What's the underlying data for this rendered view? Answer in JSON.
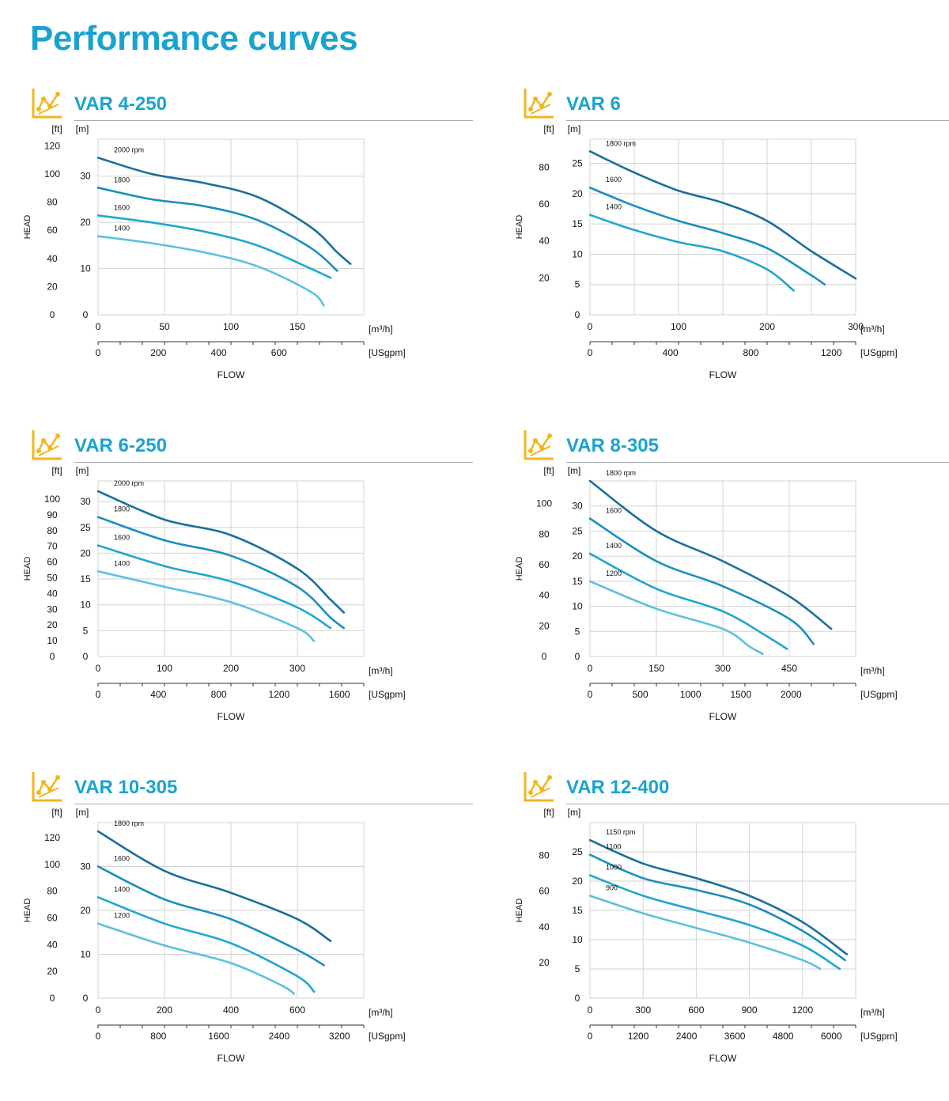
{
  "page": {
    "title": "Performance curves"
  },
  "colors": {
    "accent": "#1aa3cf",
    "icon": "#f3b51c",
    "grid": "#d3d3d3",
    "series": [
      "#1b6f9c",
      "#1a8fbd",
      "#1fa7cf",
      "#5bc1dd"
    ]
  },
  "panels": [
    {
      "title": "VAR 4-250",
      "chart_data": {
        "type": "line",
        "ft_label": "[ft]",
        "m_label": "[m]",
        "ylabel": "HEAD",
        "xlabel": "FLOW",
        "x_unit": "[m³/h]",
        "x2_unit": "[USgpm]",
        "xlim": [
          0,
          200
        ],
        "ylim": [
          0,
          38
        ],
        "x_ticks": [
          0,
          50,
          100,
          150
        ],
        "x_grid": [
          0,
          50,
          100,
          150,
          200
        ],
        "x2_ticks": [
          "0",
          "200",
          "400",
          "600"
        ],
        "x2_tick_positions": [
          0,
          45.4,
          90.8,
          136.2
        ],
        "m_ticks": [
          0,
          10,
          20,
          30
        ],
        "m_grid": [
          0,
          10,
          20,
          30
        ],
        "ft_ticks": [
          0,
          20,
          40,
          60,
          80,
          100,
          120
        ],
        "series": [
          {
            "name": "2000 rpm",
            "x": [
              0,
              40,
              80,
              120,
              160,
              180,
              190
            ],
            "y": [
              34,
              30.5,
              28.5,
              25.5,
              19,
              13.5,
              11
            ]
          },
          {
            "name": "1800",
            "x": [
              0,
              40,
              80,
              120,
              160,
              180
            ],
            "y": [
              27.5,
              25,
              23.5,
              20.5,
              14.5,
              9.5
            ]
          },
          {
            "name": "1600",
            "x": [
              0,
              40,
              80,
              120,
              160,
              175
            ],
            "y": [
              21.5,
              20,
              18,
              15,
              10,
              8
            ]
          },
          {
            "name": "1400",
            "x": [
              0,
              40,
              80,
              120,
              160,
              170
            ],
            "y": [
              17,
              15.5,
              13.5,
              10.5,
              5,
              2
            ]
          }
        ]
      }
    },
    {
      "title": "VAR 6",
      "chart_data": {
        "type": "line",
        "ft_label": "[ft]",
        "m_label": "[m]",
        "ylabel": "HEAD",
        "xlabel": "FLOW",
        "x_unit": "[m³/h]",
        "x2_unit": "[USgpm]",
        "xlim": [
          0,
          300
        ],
        "ylim": [
          0,
          29
        ],
        "x_ticks": [
          0,
          100,
          200,
          300
        ],
        "x_grid": [
          0,
          50,
          100,
          150,
          200,
          250,
          300
        ],
        "x2_ticks": [
          "0",
          "400",
          "800",
          "1200"
        ],
        "x2_tick_positions": [
          0,
          90.8,
          181.7,
          272.5
        ],
        "m_ticks": [
          0,
          5,
          10,
          15,
          20,
          25
        ],
        "m_grid": [
          0,
          5,
          10,
          15,
          20,
          25
        ],
        "ft_ticks": [
          20,
          40,
          60,
          80
        ],
        "series": [
          {
            "name": "1800 rpm",
            "x": [
              0,
              50,
              100,
              150,
              200,
              250,
              300
            ],
            "y": [
              27,
              23.5,
              20.5,
              18.5,
              15.5,
              10.5,
              6
            ]
          },
          {
            "name": "1600",
            "x": [
              0,
              50,
              100,
              150,
              200,
              250,
              265
            ],
            "y": [
              21,
              18,
              15.5,
              13.5,
              11,
              6.5,
              5
            ]
          },
          {
            "name": "1400",
            "x": [
              0,
              50,
              100,
              150,
              200,
              230
            ],
            "y": [
              16.5,
              14,
              12,
              10.5,
              7.5,
              4
            ]
          }
        ]
      }
    },
    {
      "title": "VAR 6-250",
      "chart_data": {
        "type": "line",
        "ft_label": "[ft]",
        "m_label": "[m]",
        "ylabel": "HEAD",
        "xlabel": "FLOW",
        "x_unit": "[m³/h]",
        "x2_unit": "[USgpm]",
        "xlim": [
          0,
          400
        ],
        "ylim": [
          0,
          34
        ],
        "x_ticks": [
          0,
          100,
          200,
          300
        ],
        "x_grid": [
          0,
          100,
          200,
          300,
          400
        ],
        "x2_ticks": [
          "0",
          "400",
          "800",
          "1200",
          "1600"
        ],
        "x2_tick_positions": [
          0,
          90.8,
          181.7,
          272.5,
          363.4
        ],
        "m_ticks": [
          0,
          5,
          10,
          15,
          20,
          25,
          30
        ],
        "m_grid": [
          0,
          5,
          10,
          15,
          20,
          25,
          30
        ],
        "ft_ticks": [
          0,
          10,
          20,
          30,
          40,
          50,
          60,
          70,
          80,
          90,
          100
        ],
        "series": [
          {
            "name": "2000 rpm",
            "x": [
              0,
              100,
              200,
              300,
              350,
              370
            ],
            "y": [
              32,
              26.5,
              23.5,
              17,
              11,
              8.5
            ]
          },
          {
            "name": "1800",
            "x": [
              0,
              100,
              200,
              300,
              350,
              370
            ],
            "y": [
              27,
              22.5,
              19.5,
              13.5,
              7.5,
              5.5
            ]
          },
          {
            "name": "1600",
            "x": [
              0,
              100,
              200,
              300,
              350
            ],
            "y": [
              21.5,
              17.5,
              14.5,
              9.5,
              5.5
            ]
          },
          {
            "name": "1400",
            "x": [
              0,
              100,
              200,
              300,
              325
            ],
            "y": [
              16.5,
              13.5,
              10.5,
              5.5,
              3
            ]
          }
        ]
      }
    },
    {
      "title": "VAR 8-305",
      "chart_data": {
        "type": "line",
        "ft_label": "[ft]",
        "m_label": "[m]",
        "ylabel": "HEAD",
        "xlabel": "FLOW",
        "x_unit": "[m³/h]",
        "x2_unit": "[USgpm]",
        "xlim": [
          0,
          600
        ],
        "ylim": [
          0,
          35
        ],
        "x_ticks": [
          0,
          150,
          300,
          450
        ],
        "x_grid": [
          0,
          150,
          300,
          450,
          600
        ],
        "x2_ticks": [
          "0",
          "500",
          "1000",
          "1500",
          "2000"
        ],
        "x2_tick_positions": [
          0,
          113.6,
          227.1,
          340.7,
          454.2
        ],
        "m_ticks": [
          0,
          5,
          10,
          15,
          20,
          25,
          30
        ],
        "m_grid": [
          0,
          5,
          10,
          15,
          20,
          25,
          30
        ],
        "ft_ticks": [
          0,
          20,
          40,
          60,
          80,
          100
        ],
        "series": [
          {
            "name": "1800 rpm",
            "x": [
              0,
              150,
              300,
              450,
              545
            ],
            "y": [
              35,
              25,
              19,
              12,
              5.5
            ]
          },
          {
            "name": "1600",
            "x": [
              0,
              150,
              300,
              450,
              505
            ],
            "y": [
              27.5,
              19,
              14,
              7.5,
              2.5
            ]
          },
          {
            "name": "1400",
            "x": [
              0,
              150,
              300,
              400,
              445
            ],
            "y": [
              20.5,
              13.5,
              9,
              4,
              1.5
            ]
          },
          {
            "name": "1200",
            "x": [
              0,
              150,
              300,
              360,
              390
            ],
            "y": [
              15,
              9.5,
              5.5,
              2,
              0.5
            ]
          }
        ]
      }
    },
    {
      "title": "VAR 10-305",
      "chart_data": {
        "type": "line",
        "ft_label": "[ft]",
        "m_label": "[m]",
        "ylabel": "HEAD",
        "xlabel": "FLOW",
        "x_unit": "[m³/h]",
        "x2_unit": "[USgpm]",
        "xlim": [
          0,
          800
        ],
        "ylim": [
          0,
          40
        ],
        "x_ticks": [
          0,
          200,
          400,
          600
        ],
        "x_grid": [
          0,
          200,
          400,
          600,
          800
        ],
        "x2_ticks": [
          "0",
          "800",
          "1600",
          "2400",
          "3200"
        ],
        "x2_tick_positions": [
          0,
          181.7,
          363.4,
          545.1,
          726.8
        ],
        "m_ticks": [
          0,
          10,
          20,
          30
        ],
        "m_grid": [
          0,
          10,
          20,
          30
        ],
        "ft_ticks": [
          0,
          20,
          40,
          60,
          80,
          100,
          120
        ],
        "series": [
          {
            "name": "1800 rpm",
            "x": [
              0,
              200,
              400,
              600,
              700
            ],
            "y": [
              38,
              29,
              24,
              18,
              13
            ]
          },
          {
            "name": "1600",
            "x": [
              0,
              200,
              400,
              600,
              680
            ],
            "y": [
              30,
              22.5,
              18,
              11,
              7.5
            ]
          },
          {
            "name": "1400",
            "x": [
              0,
              200,
              400,
              600,
              650
            ],
            "y": [
              23,
              17,
              12.5,
              5,
              1.5
            ]
          },
          {
            "name": "1200",
            "x": [
              0,
              200,
              400,
              550,
              590
            ],
            "y": [
              17,
              12,
              8,
              3,
              1
            ]
          }
        ]
      }
    },
    {
      "title": "VAR 12-400",
      "chart_data": {
        "type": "line",
        "ft_label": "[ft]",
        "m_label": "[m]",
        "ylabel": "HEAD",
        "xlabel": "FLOW",
        "x_unit": "[m³/h]",
        "x2_unit": "[USgpm]",
        "xlim": [
          0,
          1500
        ],
        "ylim": [
          0,
          30
        ],
        "x_ticks": [
          0,
          300,
          600,
          900,
          1200
        ],
        "x_grid": [
          0,
          300,
          600,
          900,
          1200,
          1500
        ],
        "x2_ticks": [
          "0",
          "1200",
          "2400",
          "3600",
          "4800",
          "6000"
        ],
        "x2_tick_positions": [
          0,
          272.5,
          545.1,
          817.6,
          1090.1,
          1362.7
        ],
        "m_ticks": [
          0,
          5,
          10,
          15,
          20,
          25
        ],
        "m_grid": [
          0,
          5,
          10,
          15,
          20,
          25
        ],
        "ft_ticks": [
          20,
          40,
          60,
          80
        ],
        "series": [
          {
            "name": "1150 rpm",
            "x": [
              0,
              300,
              600,
              900,
              1200,
              1450
            ],
            "y": [
              27,
              23,
              20.5,
              17.5,
              13,
              7.5
            ]
          },
          {
            "name": "1100",
            "x": [
              0,
              300,
              600,
              900,
              1200,
              1440
            ],
            "y": [
              24.5,
              20.5,
              18.5,
              16,
              11.5,
              6.5
            ]
          },
          {
            "name": "1000",
            "x": [
              0,
              300,
              600,
              900,
              1200,
              1410
            ],
            "y": [
              21,
              17.5,
              15,
              12.5,
              9,
              5
            ]
          },
          {
            "name": "900",
            "x": [
              0,
              300,
              600,
              900,
              1200,
              1300
            ],
            "y": [
              17.5,
              14.5,
              12,
              9.5,
              6.5,
              5
            ]
          }
        ]
      }
    }
  ]
}
